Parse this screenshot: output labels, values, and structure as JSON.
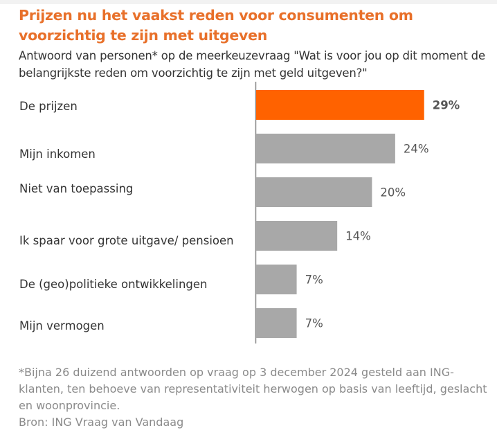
{
  "title": "Prijzen nu het vaakst reden voor consumenten om voorzichtig te zijn met uitgeven",
  "subtitle": "Antwoord van personen* op de meerkeuzevraag  \"Wat is voor jou op dit moment de belangrijkste reden om voorzichtig te zijn met geld uitgeven?\"",
  "footnote": "*Bijna 26 duizend antwoorden op vraag op 3 december 2024 gesteld aan ING-klanten, ten behoeve van representativiteit herwogen op basis van leeftijd, geslacht en woonprovincie.",
  "source": "Bron: ING Vraag van Vandaag",
  "chart_data": {
    "type": "bar",
    "orientation": "horizontal",
    "categories": [
      "De prijzen",
      "Mijn inkomen",
      "Niet van toepassing",
      "Ik spaar voor grote uitgave/ pensioen",
      "De (geo)politieke ontwikkelingen",
      "Mijn vermogen"
    ],
    "values": [
      29,
      24,
      20,
      14,
      7,
      7
    ],
    "data_labels": [
      "29%",
      "24%",
      "20%",
      "14%",
      "7%",
      "7%"
    ],
    "unit": "%",
    "highlight_index": 0,
    "colors": {
      "highlight": "#ff6200",
      "default": "#a8a8a8",
      "title": "#e8702a"
    },
    "xlim": [
      0,
      29
    ],
    "grid": false,
    "legend": "none"
  }
}
